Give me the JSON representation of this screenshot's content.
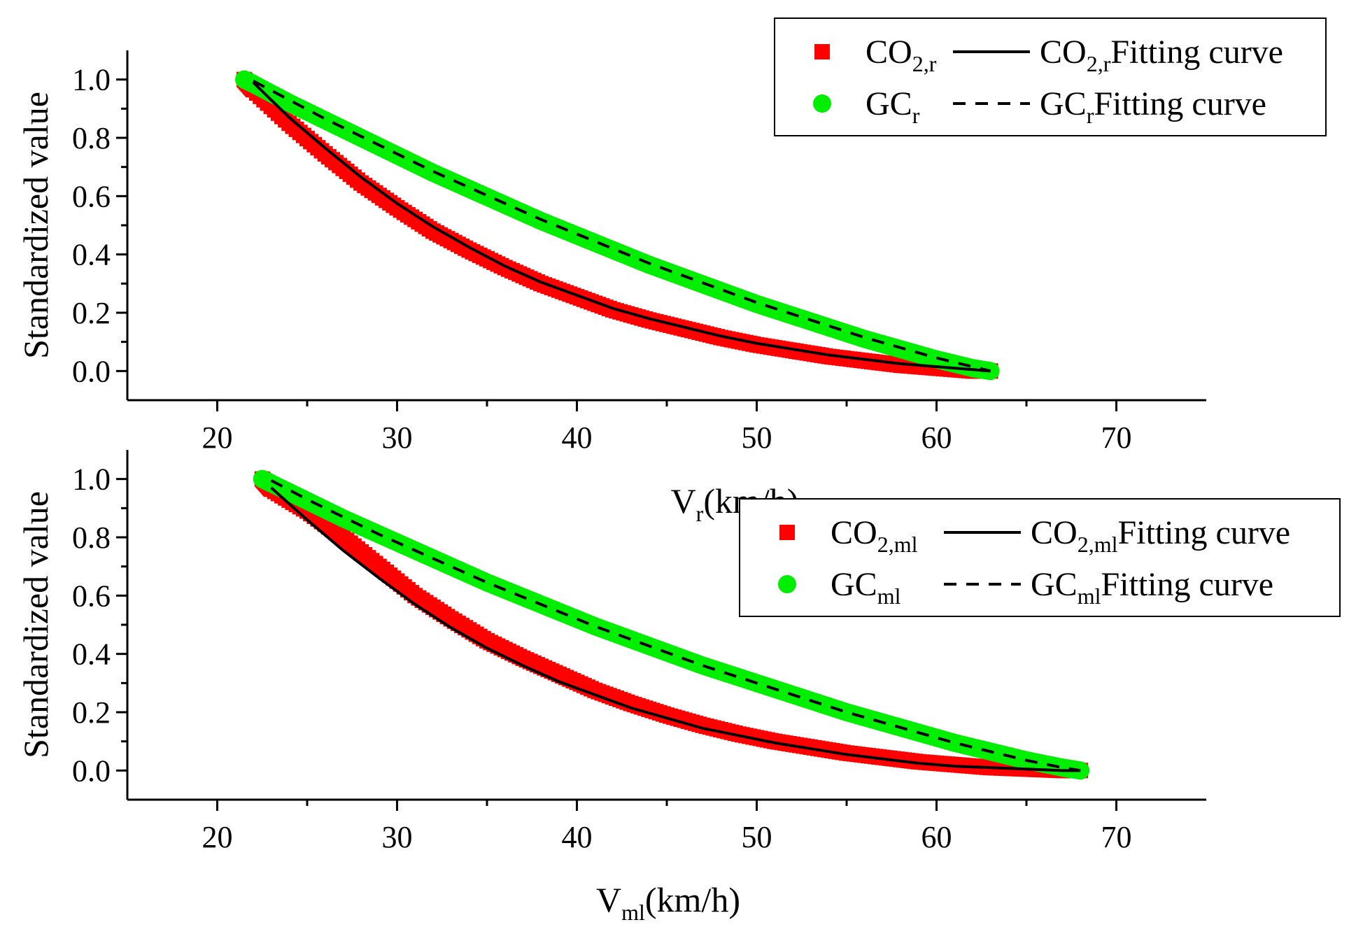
{
  "chart_data": [
    {
      "type": "scatter",
      "ylabel": "Standardized value",
      "xlabel": {
        "main": "V",
        "sub": "r",
        "unit": "(km/h)"
      },
      "xlim": [
        15,
        75
      ],
      "ylim": [
        -0.1,
        1.1
      ],
      "xticks": [
        "20",
        "30",
        "40",
        "50",
        "60",
        "70"
      ],
      "yticks": [
        "0.0",
        "0.2",
        "0.4",
        "0.6",
        "0.8",
        "1.0"
      ],
      "legend_position": "top-right",
      "series": [
        {
          "name": "CO2,r",
          "legend": {
            "main": "CO",
            "sub": "2,r"
          },
          "marker": "square",
          "color": "#ff0000",
          "x": [
            21.5,
            22,
            24,
            26,
            28,
            30,
            32,
            34,
            36,
            38,
            40,
            42,
            44,
            46,
            48,
            50,
            52,
            54,
            56,
            58,
            60,
            62,
            63
          ],
          "y": [
            1.0,
            0.965,
            0.85,
            0.745,
            0.645,
            0.56,
            0.48,
            0.415,
            0.355,
            0.3,
            0.255,
            0.21,
            0.175,
            0.145,
            0.115,
            0.09,
            0.07,
            0.05,
            0.035,
            0.02,
            0.01,
            0.0,
            0.0
          ]
        },
        {
          "name": "GCr",
          "legend": {
            "main": "GC",
            "sub": "r"
          },
          "marker": "circle",
          "color": "#00ee00",
          "x": [
            21.5,
            22,
            24,
            26,
            28,
            30,
            32,
            34,
            36,
            38,
            40,
            42,
            44,
            46,
            48,
            50,
            52,
            54,
            56,
            58,
            60,
            62,
            63
          ],
          "y": [
            1.0,
            0.985,
            0.92,
            0.86,
            0.8,
            0.74,
            0.68,
            0.625,
            0.57,
            0.515,
            0.465,
            0.415,
            0.365,
            0.32,
            0.275,
            0.23,
            0.19,
            0.15,
            0.11,
            0.075,
            0.04,
            0.01,
            0.0
          ]
        },
        {
          "name": "CO2,r Fitting curve",
          "legend": {
            "main": "CO",
            "sub": "2,r",
            "suffix": "Fitting curve"
          },
          "style": "solid",
          "color": "#000000",
          "x": [
            22,
            24,
            26,
            28,
            30,
            32,
            34,
            36,
            38,
            40,
            42,
            44,
            46,
            48,
            50,
            52,
            54,
            56,
            58,
            60,
            62,
            63
          ],
          "y": [
            0.99,
            0.87,
            0.765,
            0.665,
            0.575,
            0.495,
            0.425,
            0.36,
            0.305,
            0.26,
            0.215,
            0.18,
            0.15,
            0.12,
            0.095,
            0.075,
            0.055,
            0.04,
            0.025,
            0.015,
            0.005,
            0.0
          ]
        },
        {
          "name": "GCr Fitting curve",
          "legend": {
            "main": "GC",
            "sub": "r",
            "suffix": "Fitting curve"
          },
          "style": "dashed",
          "color": "#000000",
          "x": [
            22,
            24,
            26,
            28,
            30,
            32,
            34,
            36,
            38,
            40,
            42,
            44,
            46,
            48,
            50,
            52,
            54,
            56,
            58,
            60,
            62,
            63
          ],
          "y": [
            0.995,
            0.93,
            0.865,
            0.805,
            0.745,
            0.685,
            0.63,
            0.575,
            0.52,
            0.47,
            0.42,
            0.37,
            0.325,
            0.28,
            0.235,
            0.195,
            0.155,
            0.115,
            0.08,
            0.045,
            0.015,
            0.0
          ]
        }
      ]
    },
    {
      "type": "scatter",
      "ylabel": "Standardized value",
      "xlabel": {
        "main": "V",
        "sub": "ml",
        "unit": "(km/h)"
      },
      "xlim": [
        15,
        75
      ],
      "ylim": [
        -0.1,
        1.1
      ],
      "xticks": [
        "20",
        "30",
        "40",
        "50",
        "60",
        "70"
      ],
      "yticks": [
        "0.0",
        "0.2",
        "0.4",
        "0.6",
        "0.8",
        "1.0"
      ],
      "legend_position": "top-right",
      "series": [
        {
          "name": "CO2,ml",
          "legend": {
            "main": "CO",
            "sub": "2,ml"
          },
          "marker": "square",
          "color": "#ff0000",
          "x": [
            22.5,
            23,
            25,
            27,
            29,
            31,
            33,
            35,
            37,
            39,
            41,
            43,
            45,
            47,
            49,
            51,
            53,
            55,
            57,
            59,
            61,
            63,
            65,
            67,
            68
          ],
          "y": [
            1.0,
            0.965,
            0.89,
            0.8,
            0.7,
            0.6,
            0.52,
            0.445,
            0.385,
            0.33,
            0.275,
            0.23,
            0.19,
            0.155,
            0.125,
            0.1,
            0.08,
            0.06,
            0.045,
            0.03,
            0.02,
            0.01,
            0.005,
            0.0,
            0.0
          ]
        },
        {
          "name": "GCml",
          "legend": {
            "main": "GC",
            "sub": "ml"
          },
          "marker": "circle",
          "color": "#00ee00",
          "x": [
            22.5,
            23,
            25,
            27,
            29,
            31,
            33,
            35,
            37,
            39,
            41,
            43,
            45,
            47,
            49,
            51,
            53,
            55,
            57,
            59,
            61,
            63,
            65,
            67,
            68
          ],
          "y": [
            1.0,
            0.985,
            0.925,
            0.865,
            0.81,
            0.755,
            0.7,
            0.645,
            0.595,
            0.545,
            0.495,
            0.45,
            0.405,
            0.36,
            0.32,
            0.28,
            0.24,
            0.2,
            0.165,
            0.13,
            0.095,
            0.065,
            0.035,
            0.01,
            0.0
          ]
        },
        {
          "name": "CO2,ml Fitting curve",
          "legend": {
            "main": "CO",
            "sub": "2,ml",
            "suffix": "Fitting curve"
          },
          "style": "solid",
          "color": "#000000",
          "x": [
            23,
            25,
            27,
            29,
            31,
            33,
            35,
            37,
            39,
            41,
            43,
            45,
            47,
            49,
            51,
            53,
            55,
            57,
            59,
            61,
            63,
            65,
            67,
            68
          ],
          "y": [
            0.97,
            0.86,
            0.755,
            0.66,
            0.57,
            0.49,
            0.42,
            0.36,
            0.305,
            0.26,
            0.215,
            0.18,
            0.145,
            0.12,
            0.095,
            0.075,
            0.055,
            0.04,
            0.025,
            0.015,
            0.01,
            0.005,
            0.0,
            0.0
          ]
        },
        {
          "name": "GCml Fitting curve",
          "legend": {
            "main": "GC",
            "sub": "ml",
            "suffix": "Fitting curve"
          },
          "style": "dashed",
          "color": "#000000",
          "x": [
            23,
            25,
            27,
            29,
            31,
            33,
            35,
            37,
            39,
            41,
            43,
            45,
            47,
            49,
            51,
            53,
            55,
            57,
            59,
            61,
            63,
            65,
            67,
            68
          ],
          "y": [
            0.995,
            0.93,
            0.87,
            0.81,
            0.755,
            0.7,
            0.645,
            0.595,
            0.545,
            0.495,
            0.45,
            0.405,
            0.36,
            0.32,
            0.28,
            0.24,
            0.2,
            0.165,
            0.13,
            0.095,
            0.065,
            0.035,
            0.01,
            0.0
          ]
        }
      ]
    }
  ]
}
